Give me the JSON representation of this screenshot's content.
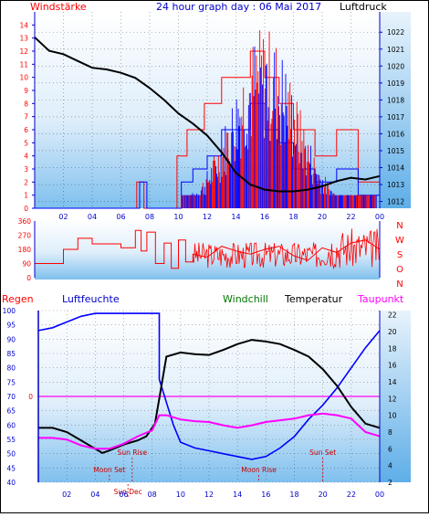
{
  "header": {
    "left_label": "Windstärke",
    "title": "24 hour graph day : 06 Mai 2017",
    "right_label": "Luftdruck"
  },
  "colors": {
    "axis_blue": "#0000cc",
    "wind_red": "#ff0000",
    "gust_blue": "#0000ff",
    "pressure": "#000000",
    "dir_red": "#ff0000",
    "humidity": "#0000ff",
    "windchill": "#007700",
    "temperature": "#000000",
    "dewpoint": "#ff00ff",
    "rain": "#ff0000",
    "marker": "#cc0000"
  },
  "chart_data": [
    {
      "type": "line",
      "x_ticks": [
        "02",
        "04",
        "06",
        "08",
        "10",
        "12",
        "14",
        "16",
        "18",
        "20",
        "22",
        "00"
      ],
      "left_axis": {
        "label": "Windstärke",
        "ticks": [
          0,
          1,
          2,
          3,
          4,
          5,
          6,
          7,
          8,
          9,
          10,
          11,
          12,
          13,
          14
        ],
        "ylim": [
          0,
          15
        ]
      },
      "right_axis": {
        "label": "Luftdruck",
        "ticks": [
          1012,
          1013,
          1014,
          1015,
          1016,
          1017,
          1018,
          1019,
          1020,
          1021,
          1022
        ],
        "ylim": [
          1011.6,
          1023.2
        ]
      },
      "series": [
        {
          "name": "Luftdruck",
          "axis": "right",
          "points": [
            [
              0,
              1021.7
            ],
            [
              1,
              1020.9
            ],
            [
              2,
              1020.7
            ],
            [
              3,
              1020.3
            ],
            [
              4,
              1019.9
            ],
            [
              5,
              1019.8
            ],
            [
              6,
              1019.6
            ],
            [
              7,
              1019.3
            ],
            [
              8,
              1018.7
            ],
            [
              9,
              1018.0
            ],
            [
              10,
              1017.2
            ],
            [
              11,
              1016.6
            ],
            [
              12,
              1015.9
            ],
            [
              13,
              1014.9
            ],
            [
              14,
              1013.7
            ],
            [
              15,
              1013.0
            ],
            [
              16,
              1012.7
            ],
            [
              17,
              1012.6
            ],
            [
              18,
              1012.6
            ],
            [
              19,
              1012.7
            ],
            [
              20,
              1012.9
            ],
            [
              21,
              1013.2
            ],
            [
              22,
              1013.4
            ],
            [
              23,
              1013.3
            ],
            [
              24,
              1013.5
            ]
          ]
        },
        {
          "name": "wind_avg",
          "axis": "left",
          "style": "step",
          "points": [
            [
              0,
              0
            ],
            [
              7.1,
              0
            ],
            [
              7.1,
              2
            ],
            [
              7.6,
              2
            ],
            [
              7.6,
              0
            ],
            [
              9.9,
              0
            ],
            [
              9.9,
              4
            ],
            [
              10.6,
              4
            ],
            [
              10.6,
              6
            ],
            [
              11.8,
              6
            ],
            [
              11.8,
              8
            ],
            [
              13,
              8
            ],
            [
              13,
              10
            ],
            [
              15,
              10
            ],
            [
              15,
              12
            ],
            [
              16,
              12
            ],
            [
              16,
              10
            ],
            [
              17,
              10
            ],
            [
              17,
              8
            ],
            [
              18,
              8
            ],
            [
              18,
              6
            ],
            [
              19.5,
              6
            ],
            [
              19.5,
              4
            ],
            [
              21,
              4
            ],
            [
              21,
              6
            ],
            [
              22.5,
              6
            ],
            [
              22.5,
              2
            ],
            [
              24,
              2
            ]
          ]
        },
        {
          "name": "wind_gust",
          "axis": "left",
          "style": "step",
          "points": [
            [
              0,
              0
            ],
            [
              7.3,
              0
            ],
            [
              7.3,
              2
            ],
            [
              7.8,
              2
            ],
            [
              7.8,
              0
            ],
            [
              10.2,
              0
            ],
            [
              10.2,
              2
            ],
            [
              11,
              2
            ],
            [
              11,
              3
            ],
            [
              12,
              3
            ],
            [
              12,
              4
            ],
            [
              13,
              4
            ],
            [
              13,
              6
            ],
            [
              15,
              6
            ],
            [
              15,
              8
            ],
            [
              16,
              8
            ],
            [
              16,
              6
            ],
            [
              17,
              6
            ],
            [
              17,
              5
            ],
            [
              18,
              5
            ],
            [
              18,
              3
            ],
            [
              19.5,
              3
            ],
            [
              19.5,
              2
            ],
            [
              21,
              2
            ],
            [
              21,
              3
            ],
            [
              22.5,
              3
            ],
            [
              22.5,
              1
            ],
            [
              24,
              1
            ]
          ]
        }
      ]
    },
    {
      "type": "line",
      "x_ticks": [
        "02",
        "04",
        "06",
        "08",
        "10",
        "12",
        "14",
        "16",
        "18",
        "20",
        "22",
        "00"
      ],
      "left_axis": {
        "ticks": [
          0,
          90,
          180,
          270,
          360
        ],
        "ylim": [
          0,
          360
        ]
      },
      "right_labels": [
        "N",
        "W",
        "S",
        "O",
        "N"
      ],
      "series": [
        {
          "name": "wind_direction",
          "points": [
            [
              0,
              90
            ],
            [
              2,
              90
            ],
            [
              2,
              180
            ],
            [
              3,
              180
            ],
            [
              3,
              250
            ],
            [
              4,
              250
            ],
            [
              4,
              215
            ],
            [
              6,
              215
            ],
            [
              6,
              190
            ],
            [
              7,
              190
            ],
            [
              7,
              300
            ],
            [
              7.4,
              300
            ],
            [
              7.4,
              170
            ],
            [
              7.8,
              170
            ],
            [
              7.8,
              290
            ],
            [
              8.4,
              290
            ],
            [
              8.4,
              90
            ],
            [
              9,
              90
            ],
            [
              9,
              220
            ],
            [
              9.5,
              220
            ],
            [
              9.5,
              60
            ],
            [
              10,
              60
            ],
            [
              10,
              240
            ],
            [
              10.5,
              240
            ],
            [
              10.5,
              100
            ],
            [
              11,
              100
            ],
            [
              11,
              150
            ],
            [
              12,
              130
            ],
            [
              13,
              200
            ],
            [
              14,
              170
            ],
            [
              15,
              150
            ],
            [
              16,
              180
            ],
            [
              17,
              200
            ],
            [
              18,
              140
            ],
            [
              19,
              110
            ],
            [
              20,
              190
            ],
            [
              21,
              160
            ],
            [
              22,
              220
            ],
            [
              23,
              240
            ],
            [
              24,
              180
            ]
          ]
        }
      ]
    },
    {
      "type": "line",
      "x_ticks": [
        "02",
        "04",
        "06",
        "08",
        "10",
        "12",
        "14",
        "16",
        "18",
        "20",
        "22",
        "00"
      ],
      "left_axis": {
        "label": "Luftfeuchte",
        "ticks": [
          40,
          45,
          50,
          55,
          60,
          65,
          70,
          75,
          80,
          85,
          90,
          95,
          100
        ],
        "ylim": [
          40,
          100
        ]
      },
      "rain_axis": {
        "label": "Regen",
        "ticks": [
          "0"
        ]
      },
      "right_axis": {
        "label": "Temperatur",
        "ticks": [
          2,
          4,
          6,
          8,
          10,
          12,
          14,
          16,
          18,
          20,
          22
        ],
        "ylim": [
          2,
          22.5
        ]
      },
      "legend": [
        "Windchill",
        "Temperatur",
        "Taupunkt"
      ],
      "annotations": [
        "Moon Set",
        "Sun Rise",
        "Sun Dec",
        "Moon Rise",
        "Sun Set"
      ],
      "series": [
        {
          "name": "Luftfeuchte",
          "axis": "left",
          "points": [
            [
              0,
              93
            ],
            [
              1,
              94
            ],
            [
              2,
              96
            ],
            [
              3,
              98
            ],
            [
              4,
              99
            ],
            [
              5,
              99
            ],
            [
              6,
              99
            ],
            [
              7,
              99
            ],
            [
              8.5,
              99
            ],
            [
              8.5,
              76
            ],
            [
              9.5,
              60
            ],
            [
              10,
              54
            ],
            [
              11,
              52
            ],
            [
              12,
              51
            ],
            [
              13,
              50
            ],
            [
              14,
              49
            ],
            [
              15,
              48
            ],
            [
              16,
              49
            ],
            [
              17,
              52
            ],
            [
              18,
              56
            ],
            [
              19,
              62
            ],
            [
              20,
              67
            ],
            [
              21,
              73
            ],
            [
              22,
              80
            ],
            [
              23,
              87
            ],
            [
              24,
              93
            ]
          ]
        },
        {
          "name": "Temperatur",
          "axis": "right",
          "points": [
            [
              0,
              8.5
            ],
            [
              1,
              8.5
            ],
            [
              2,
              8
            ],
            [
              3,
              7
            ],
            [
              4,
              6
            ],
            [
              4.5,
              5.5
            ],
            [
              5,
              5.8
            ],
            [
              6,
              6.5
            ],
            [
              7,
              7
            ],
            [
              7.6,
              7.5
            ],
            [
              8.2,
              9
            ],
            [
              8.5,
              12
            ],
            [
              9,
              17
            ],
            [
              10,
              17.5
            ],
            [
              11,
              17.3
            ],
            [
              12,
              17.2
            ],
            [
              13,
              17.8
            ],
            [
              14,
              18.5
            ],
            [
              15,
              19
            ],
            [
              16,
              18.8
            ],
            [
              17,
              18.5
            ],
            [
              18,
              17.8
            ],
            [
              19,
              17
            ],
            [
              20,
              15.5
            ],
            [
              21,
              13.5
            ],
            [
              22,
              11
            ],
            [
              23,
              9
            ],
            [
              24,
              8.5
            ]
          ]
        },
        {
          "name": "Taupunkt",
          "axis": "right",
          "points": [
            [
              0,
              7.3
            ],
            [
              1,
              7.3
            ],
            [
              2,
              7.1
            ],
            [
              3,
              6.4
            ],
            [
              4,
              6
            ],
            [
              5,
              6
            ],
            [
              6,
              6.6
            ],
            [
              7,
              7.5
            ],
            [
              8,
              8.2
            ],
            [
              8.5,
              10
            ],
            [
              9,
              10
            ],
            [
              10,
              9.5
            ],
            [
              11,
              9.3
            ],
            [
              12,
              9.2
            ],
            [
              13,
              8.8
            ],
            [
              14,
              8.5
            ],
            [
              15,
              8.8
            ],
            [
              16,
              9.2
            ],
            [
              17,
              9.4
            ],
            [
              18,
              9.6
            ],
            [
              19,
              10
            ],
            [
              20,
              10.2
            ],
            [
              21,
              10
            ],
            [
              22,
              9.6
            ],
            [
              23,
              8
            ],
            [
              24,
              7.5
            ]
          ]
        },
        {
          "name": "Windchill",
          "axis": "right",
          "points": [
            [
              0,
              8.5
            ],
            [
              24,
              8.5
            ]
          ]
        }
      ]
    }
  ]
}
